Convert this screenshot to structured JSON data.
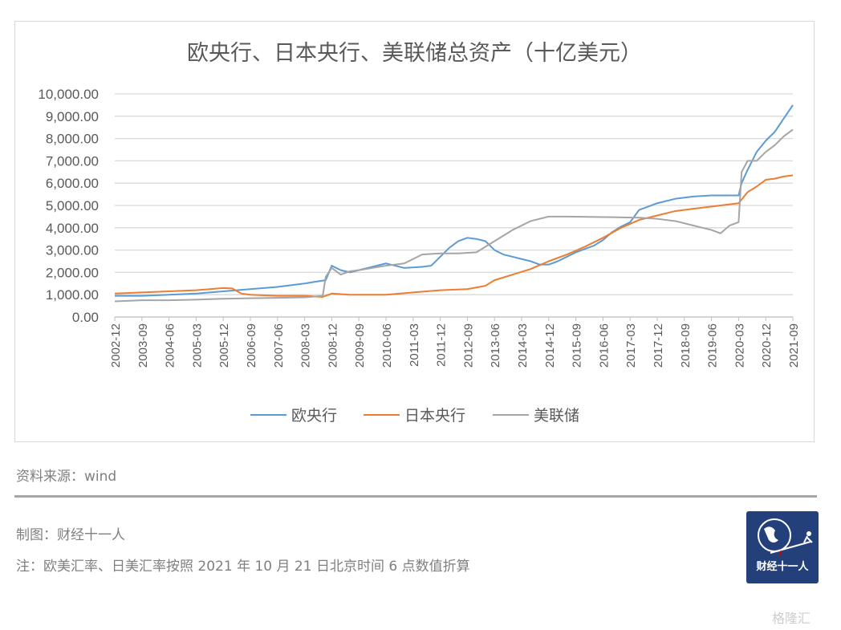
{
  "chart_data": {
    "type": "line",
    "title": "欧央行、日本央行、美联储总资产（十亿美元）",
    "ylim": [
      0,
      10000
    ],
    "yticks": [
      "0.00",
      "1,000.00",
      "2,000.00",
      "3,000.00",
      "4,000.00",
      "5,000.00",
      "6,000.00",
      "7,000.00",
      "8,000.00",
      "9,000.00",
      "10,000.00"
    ],
    "xticks": [
      "2002-12",
      "2003-09",
      "2004-06",
      "2005-03",
      "2005-12",
      "2006-09",
      "2007-06",
      "2008-03",
      "2008-12",
      "2009-09",
      "2010-06",
      "2011-03",
      "2011-12",
      "2012-09",
      "2013-06",
      "2014-03",
      "2014-12",
      "2015-09",
      "2016-06",
      "2017-03",
      "2017-12",
      "2018-09",
      "2019-06",
      "2020-03",
      "2020-12",
      "2021-09"
    ],
    "grid": true,
    "legend": "bottom",
    "series": [
      {
        "name": "欧央行",
        "color": "#5b9bd5",
        "points": [
          [
            "2002-12",
            950
          ],
          [
            "2003-09",
            950
          ],
          [
            "2004-06",
            1000
          ],
          [
            "2005-03",
            1050
          ],
          [
            "2005-12",
            1150
          ],
          [
            "2006-09",
            1250
          ],
          [
            "2007-06",
            1350
          ],
          [
            "2008-03",
            1500
          ],
          [
            "2008-06",
            1570
          ],
          [
            "2008-10",
            1650
          ],
          [
            "2008-12",
            2300
          ],
          [
            "2009-03",
            2100
          ],
          [
            "2009-06",
            2000
          ],
          [
            "2009-09",
            2100
          ],
          [
            "2010-06",
            2400
          ],
          [
            "2010-12",
            2200
          ],
          [
            "2011-06",
            2250
          ],
          [
            "2011-09",
            2300
          ],
          [
            "2011-12",
            2700
          ],
          [
            "2012-03",
            3100
          ],
          [
            "2012-06",
            3400
          ],
          [
            "2012-09",
            3550
          ],
          [
            "2012-12",
            3500
          ],
          [
            "2013-03",
            3400
          ],
          [
            "2013-06",
            3000
          ],
          [
            "2013-09",
            2800
          ],
          [
            "2014-03",
            2600
          ],
          [
            "2014-06",
            2500
          ],
          [
            "2014-09",
            2350
          ],
          [
            "2014-12",
            2350
          ],
          [
            "2015-03",
            2500
          ],
          [
            "2015-06",
            2700
          ],
          [
            "2015-09",
            2900
          ],
          [
            "2015-12",
            3050
          ],
          [
            "2016-03",
            3200
          ],
          [
            "2016-06",
            3450
          ],
          [
            "2016-09",
            3800
          ],
          [
            "2016-12",
            4050
          ],
          [
            "2017-03",
            4250
          ],
          [
            "2017-06",
            4800
          ],
          [
            "2017-09",
            4950
          ],
          [
            "2017-12",
            5100
          ],
          [
            "2018-06",
            5300
          ],
          [
            "2018-12",
            5400
          ],
          [
            "2019-06",
            5450
          ],
          [
            "2020-03",
            5450
          ],
          [
            "2020-04",
            6000
          ],
          [
            "2020-06",
            6600
          ],
          [
            "2020-09",
            7400
          ],
          [
            "2020-12",
            7900
          ],
          [
            "2021-03",
            8300
          ],
          [
            "2021-06",
            8900
          ],
          [
            "2021-09",
            9500
          ]
        ]
      },
      {
        "name": "日本央行",
        "color": "#ed7d31",
        "points": [
          [
            "2002-12",
            1050
          ],
          [
            "2003-09",
            1100
          ],
          [
            "2004-06",
            1150
          ],
          [
            "2005-03",
            1200
          ],
          [
            "2005-12",
            1300
          ],
          [
            "2006-03",
            1280
          ],
          [
            "2006-06",
            1050
          ],
          [
            "2006-09",
            1000
          ],
          [
            "2007-06",
            950
          ],
          [
            "2008-03",
            950
          ],
          [
            "2008-09",
            900
          ],
          [
            "2008-12",
            1050
          ],
          [
            "2009-06",
            1000
          ],
          [
            "2010-06",
            1000
          ],
          [
            "2011-03",
            1100
          ],
          [
            "2011-12",
            1200
          ],
          [
            "2012-09",
            1250
          ],
          [
            "2013-03",
            1400
          ],
          [
            "2013-06",
            1650
          ],
          [
            "2013-12",
            1900
          ],
          [
            "2014-06",
            2150
          ],
          [
            "2014-12",
            2500
          ],
          [
            "2015-06",
            2800
          ],
          [
            "2015-12",
            3150
          ],
          [
            "2016-06",
            3550
          ],
          [
            "2016-12",
            4000
          ],
          [
            "2017-06",
            4350
          ],
          [
            "2017-12",
            4550
          ],
          [
            "2018-06",
            4750
          ],
          [
            "2018-12",
            4850
          ],
          [
            "2019-06",
            4950
          ],
          [
            "2019-12",
            5050
          ],
          [
            "2020-03",
            5100
          ],
          [
            "2020-06",
            5600
          ],
          [
            "2020-09",
            5850
          ],
          [
            "2020-12",
            6150
          ],
          [
            "2021-03",
            6200
          ],
          [
            "2021-06",
            6300
          ],
          [
            "2021-09",
            6350
          ]
        ]
      },
      {
        "name": "美联储",
        "color": "#a5a5a5",
        "points": [
          [
            "2002-12",
            700
          ],
          [
            "2003-09",
            750
          ],
          [
            "2004-06",
            750
          ],
          [
            "2005-03",
            780
          ],
          [
            "2005-12",
            820
          ],
          [
            "2006-09",
            840
          ],
          [
            "2007-06",
            860
          ],
          [
            "2008-03",
            880
          ],
          [
            "2008-09",
            950
          ],
          [
            "2008-10",
            1800
          ],
          [
            "2008-12",
            2200
          ],
          [
            "2009-03",
            1900
          ],
          [
            "2009-06",
            2050
          ],
          [
            "2009-09",
            2100
          ],
          [
            "2010-06",
            2300
          ],
          [
            "2010-12",
            2400
          ],
          [
            "2011-06",
            2800
          ],
          [
            "2011-12",
            2850
          ],
          [
            "2012-06",
            2850
          ],
          [
            "2012-12",
            2900
          ],
          [
            "2013-06",
            3400
          ],
          [
            "2013-12",
            3900
          ],
          [
            "2014-06",
            4300
          ],
          [
            "2014-12",
            4500
          ],
          [
            "2015-06",
            4500
          ],
          [
            "2016-06",
            4480
          ],
          [
            "2017-06",
            4450
          ],
          [
            "2017-12",
            4400
          ],
          [
            "2018-06",
            4300
          ],
          [
            "2018-12",
            4100
          ],
          [
            "2019-06",
            3900
          ],
          [
            "2019-09",
            3750
          ],
          [
            "2019-12",
            4100
          ],
          [
            "2020-03",
            4250
          ],
          [
            "2020-04",
            6500
          ],
          [
            "2020-06",
            7000
          ],
          [
            "2020-09",
            7000
          ],
          [
            "2020-12",
            7400
          ],
          [
            "2021-03",
            7700
          ],
          [
            "2021-06",
            8100
          ],
          [
            "2021-09",
            8400
          ]
        ]
      }
    ]
  },
  "notes": {
    "source": "资料来源：wind",
    "maker": "制图：财经十一人",
    "remark": "注：欧美汇率、日美汇率按照 2021 年 10 月 21 日北京时间 6 点数值折算"
  },
  "logo": {
    "text": "财经十一人"
  },
  "watermark": "格隆汇"
}
